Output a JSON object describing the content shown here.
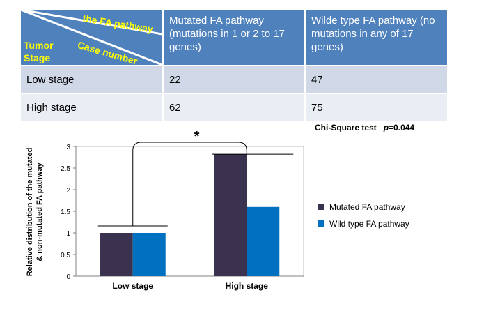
{
  "table": {
    "corner": {
      "top": "the FA pathway",
      "middle": "Case number",
      "bottom": [
        "Tumor",
        "Stage"
      ]
    },
    "headers": [
      "Mutated FA pathway (mutations in 1 or 2 to 17 genes)",
      "Wilde type FA pathway (no mutations in any of 17 genes)"
    ],
    "rows": [
      {
        "label": "Low stage",
        "values": [
          "22",
          "47"
        ]
      },
      {
        "label": "High stage",
        "values": [
          "62",
          "75"
        ]
      }
    ]
  },
  "test": {
    "name": "Chi-Square test",
    "p_label": "p",
    "p_value": "=0.044"
  },
  "chart_data": {
    "type": "bar",
    "categories": [
      "Low stage",
      "High stage"
    ],
    "series": [
      {
        "name": "Mutated FA pathway",
        "values": [
          1.0,
          2.82
        ],
        "color": "#3b3250"
      },
      {
        "name": "Wild type FA pathway",
        "values": [
          1.0,
          1.6
        ],
        "color": "#0070c0"
      }
    ],
    "ylabel": [
      "Relative distribution of the mutated",
      "& non-mutated FA pathway"
    ],
    "ylim": [
      0,
      3
    ],
    "yticks": [
      "0",
      "0.5",
      "1",
      "1.5",
      "2",
      "2.5",
      "3"
    ],
    "grid": false,
    "legend": "right",
    "annotation": "*",
    "significance_bracket": true
  }
}
